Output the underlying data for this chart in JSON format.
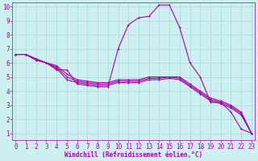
{
  "background_color": "#cff0f0",
  "grid_color": "#aadddd",
  "line_color": "#aa00aa",
  "marker_color": "#aa00aa",
  "xlabel": "Windchill (Refroidissement éolien,°C)",
  "xlim": [
    0,
    23
  ],
  "ylim": [
    0,
    10
  ],
  "xticks": [
    0,
    1,
    2,
    3,
    4,
    5,
    6,
    7,
    8,
    9,
    10,
    11,
    12,
    13,
    14,
    15,
    16,
    17,
    18,
    19,
    20,
    21,
    22,
    23
  ],
  "yticks": [
    1,
    2,
    3,
    4,
    5,
    6,
    7,
    8,
    9,
    10
  ],
  "series": [
    [
      6.6,
      6.6,
      6.3,
      6.0,
      5.5,
      5.5,
      4.5,
      4.4,
      4.3,
      4.3,
      7.0,
      8.7,
      9.2,
      9.3,
      10.1,
      10.1,
      8.5,
      6.0,
      5.0,
      3.2,
      3.2,
      2.5,
      1.3,
      1.0
    ],
    [
      6.6,
      6.6,
      6.2,
      6.0,
      5.8,
      5.2,
      4.8,
      4.7,
      4.6,
      4.6,
      4.8,
      4.8,
      4.8,
      5.0,
      5.0,
      5.0,
      5.0,
      4.5,
      4.0,
      3.5,
      3.3,
      3.0,
      2.5,
      1.0
    ],
    [
      6.6,
      6.6,
      6.2,
      6.0,
      5.7,
      5.0,
      4.7,
      4.6,
      4.5,
      4.5,
      4.7,
      4.7,
      4.7,
      4.9,
      4.9,
      5.0,
      4.9,
      4.4,
      3.9,
      3.4,
      3.2,
      2.9,
      2.4,
      1.0
    ],
    [
      6.6,
      6.6,
      6.2,
      6.0,
      5.6,
      4.8,
      4.6,
      4.5,
      4.4,
      4.4,
      4.6,
      4.6,
      4.6,
      4.8,
      4.8,
      4.9,
      4.8,
      4.3,
      3.8,
      3.3,
      3.1,
      2.8,
      2.3,
      1.0
    ]
  ],
  "tick_fontsize": 5.5,
  "xlabel_fontsize": 5.5,
  "ylabel_fontsize": 5.5,
  "linewidth": 0.8,
  "markersize": 1.8
}
